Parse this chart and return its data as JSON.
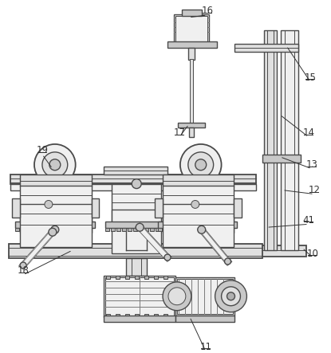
{
  "bg_color": "#ffffff",
  "lc": "#4a4a4a",
  "lc2": "#7a7a7a",
  "fc_light": "#f0f0f0",
  "fc_mid": "#e0e0e0",
  "fc_dark": "#c8c8c8",
  "fc_darker": "#b0b0b0",
  "label_color": "#333333",
  "figsize": [
    4.15,
    4.43
  ],
  "dpi": 100
}
